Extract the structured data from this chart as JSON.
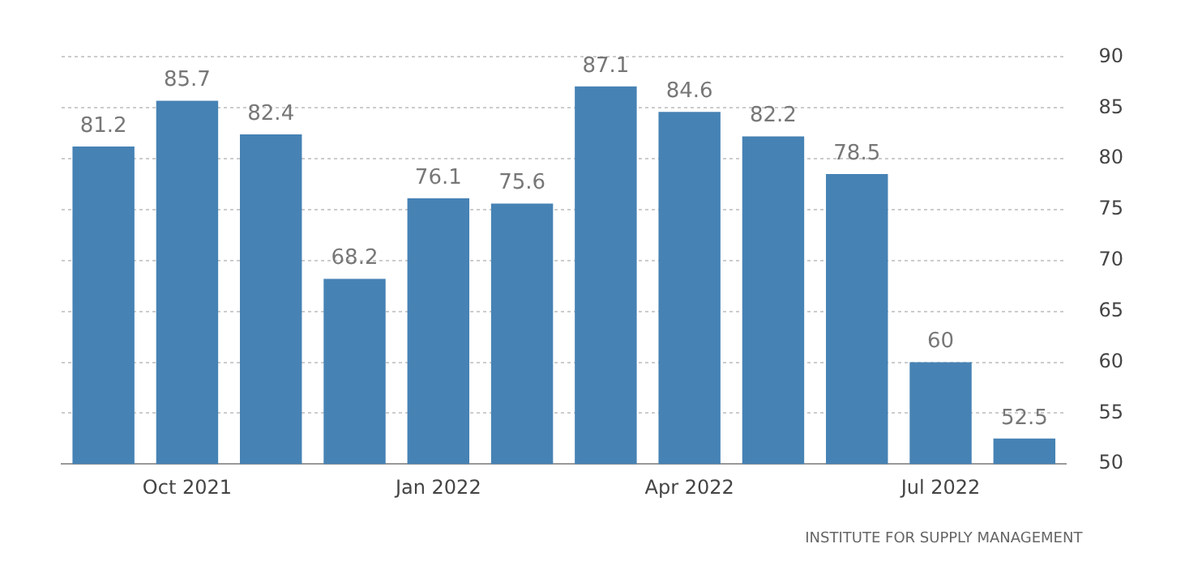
{
  "chart_data": {
    "type": "bar",
    "categories": [
      null,
      "Oct 2021",
      null,
      null,
      "Jan 2022",
      null,
      null,
      "Apr 2022",
      null,
      null,
      "Jul 2022",
      null
    ],
    "values": [
      81.2,
      85.7,
      82.4,
      68.2,
      76.1,
      75.6,
      87.1,
      84.6,
      82.2,
      78.5,
      60,
      52.5
    ],
    "color": "#4682b4",
    "ylim": [
      50,
      90
    ],
    "yticks": [
      50,
      55,
      60,
      65,
      70,
      75,
      80,
      85,
      90
    ],
    "grid": "y",
    "data_labels": true,
    "annotations": [
      "INSTITUTE FOR SUPPLY MANAGEMENT"
    ]
  }
}
